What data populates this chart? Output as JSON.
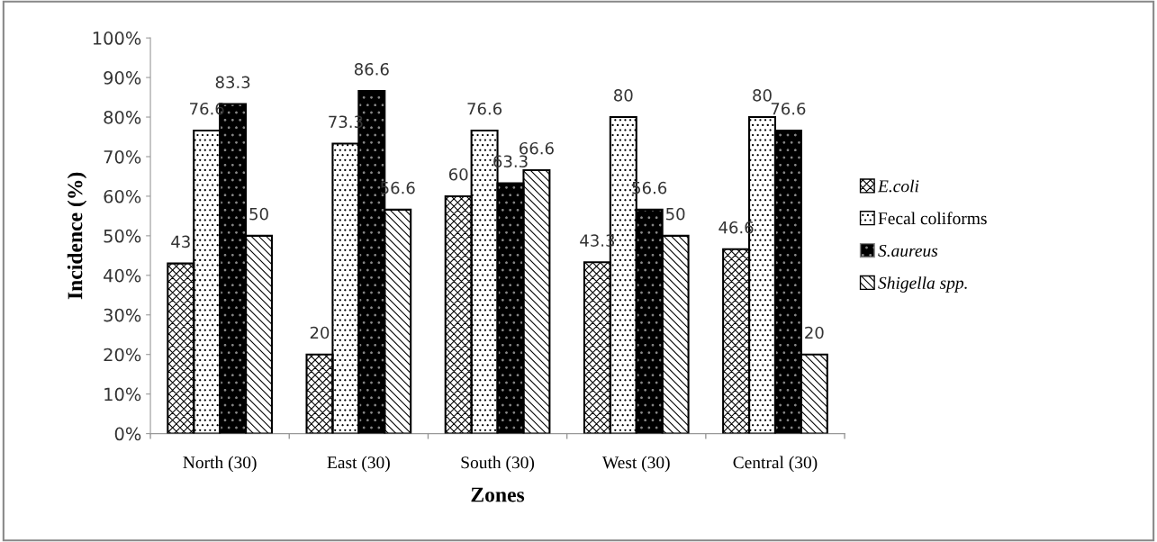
{
  "chart_data": {
    "type": "bar",
    "xlabel": "Zones",
    "ylabel": "Incidence (%)",
    "categories": [
      "North (30)",
      "East (30)",
      "South (30)",
      "West (30)",
      "Central (30)"
    ],
    "series": [
      {
        "name": "E.coli",
        "color": "#ffffff",
        "values": [
          43,
          20,
          60,
          43.3,
          46.6
        ]
      },
      {
        "name": "Fecal coliforms",
        "color": "#ffffff",
        "values": [
          76.6,
          73.3,
          76.6,
          80,
          80
        ]
      },
      {
        "name": "S.aureus",
        "color": "#000000",
        "values": [
          83.3,
          86.6,
          63.3,
          56.6,
          76.6
        ]
      },
      {
        "name": "Shigella spp.",
        "color": "#ffffff",
        "values": [
          50,
          56.6,
          66.6,
          50,
          20
        ]
      }
    ],
    "ylim": [
      0,
      100
    ],
    "yticks": [
      {
        "value": 0,
        "label": "0%"
      },
      {
        "value": 10,
        "label": "10%"
      },
      {
        "value": 20,
        "label": "20%"
      },
      {
        "value": 30,
        "label": "30%"
      },
      {
        "value": 40,
        "label": "40%"
      },
      {
        "value": 50,
        "label": "50%"
      },
      {
        "value": 60,
        "label": "60%"
      },
      {
        "value": 70,
        "label": "70%"
      },
      {
        "value": 80,
        "label": "80%"
      },
      {
        "value": 90,
        "label": "90%"
      },
      {
        "value": 100,
        "label": "100%"
      }
    ],
    "data_labels": true,
    "legend": "right",
    "grid": false
  }
}
